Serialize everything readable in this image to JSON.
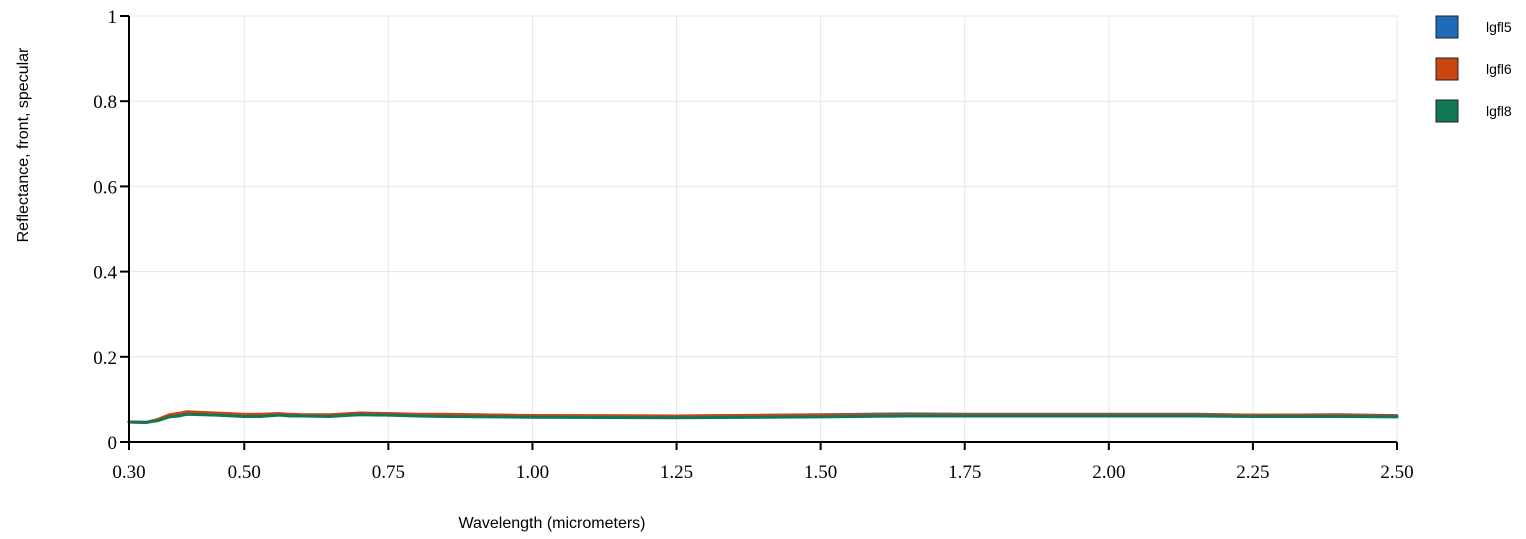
{
  "chart_data": {
    "type": "line",
    "xlabel": "Wavelength (micrometers)",
    "ylabel": "Reflectance, front, specular",
    "xlim": [
      0.3,
      2.5
    ],
    "ylim": [
      0,
      1
    ],
    "x_ticks": [
      0.3,
      0.5,
      0.75,
      1.0,
      1.25,
      1.5,
      1.75,
      2.0,
      2.25,
      2.5
    ],
    "x_tick_labels": [
      "0.30",
      "0.50",
      "0.75",
      "1.00",
      "1.25",
      "1.50",
      "1.75",
      "2.00",
      "2.25",
      "2.50"
    ],
    "y_ticks": [
      0,
      0.2,
      0.4,
      0.6,
      0.8,
      1
    ],
    "y_tick_labels": [
      "0",
      "0.2",
      "0.4",
      "0.6",
      "0.8",
      "1"
    ],
    "grid": true,
    "legend_position": "top-right",
    "series": [
      {
        "name": "lgfl5",
        "color": "#1f6bb8",
        "x": [
          0.3,
          0.33,
          0.35,
          0.37,
          0.38,
          0.39,
          0.4,
          0.45,
          0.5,
          0.53,
          0.56,
          0.58,
          0.6,
          0.65,
          0.7,
          0.75,
          0.8,
          0.85,
          1.0,
          1.25,
          1.5,
          1.65,
          1.75,
          2.0,
          2.15,
          2.25,
          2.4,
          2.5
        ],
        "y": [
          0.047,
          0.046,
          0.052,
          0.062,
          0.064,
          0.066,
          0.07,
          0.067,
          0.063,
          0.063,
          0.066,
          0.064,
          0.063,
          0.063,
          0.067,
          0.066,
          0.064,
          0.064,
          0.062,
          0.061,
          0.064,
          0.066,
          0.065,
          0.065,
          0.065,
          0.063,
          0.064,
          0.062
        ]
      },
      {
        "name": "lgfl6",
        "color": "#cc4411",
        "x": [
          0.3,
          0.33,
          0.35,
          0.37,
          0.38,
          0.39,
          0.4,
          0.45,
          0.5,
          0.53,
          0.56,
          0.58,
          0.6,
          0.65,
          0.7,
          0.75,
          0.8,
          0.85,
          1.0,
          1.25,
          1.5,
          1.65,
          1.75,
          2.0,
          2.15,
          2.25,
          2.4,
          2.5
        ],
        "y": [
          0.047,
          0.046,
          0.053,
          0.064,
          0.066,
          0.068,
          0.071,
          0.068,
          0.065,
          0.065,
          0.067,
          0.065,
          0.064,
          0.064,
          0.068,
          0.067,
          0.065,
          0.065,
          0.062,
          0.061,
          0.063,
          0.064,
          0.064,
          0.064,
          0.064,
          0.063,
          0.063,
          0.061
        ]
      },
      {
        "name": "lgfl8",
        "color": "#117755",
        "x": [
          0.3,
          0.33,
          0.35,
          0.37,
          0.38,
          0.39,
          0.4,
          0.45,
          0.5,
          0.53,
          0.56,
          0.58,
          0.6,
          0.65,
          0.7,
          0.75,
          0.8,
          0.85,
          1.0,
          1.25,
          1.5,
          1.65,
          1.75,
          2.0,
          2.15,
          2.25,
          2.4,
          2.5
        ],
        "y": [
          0.047,
          0.046,
          0.05,
          0.059,
          0.06,
          0.062,
          0.065,
          0.063,
          0.06,
          0.06,
          0.063,
          0.061,
          0.061,
          0.06,
          0.064,
          0.063,
          0.061,
          0.06,
          0.058,
          0.057,
          0.059,
          0.061,
          0.061,
          0.061,
          0.061,
          0.06,
          0.06,
          0.059
        ]
      }
    ]
  }
}
